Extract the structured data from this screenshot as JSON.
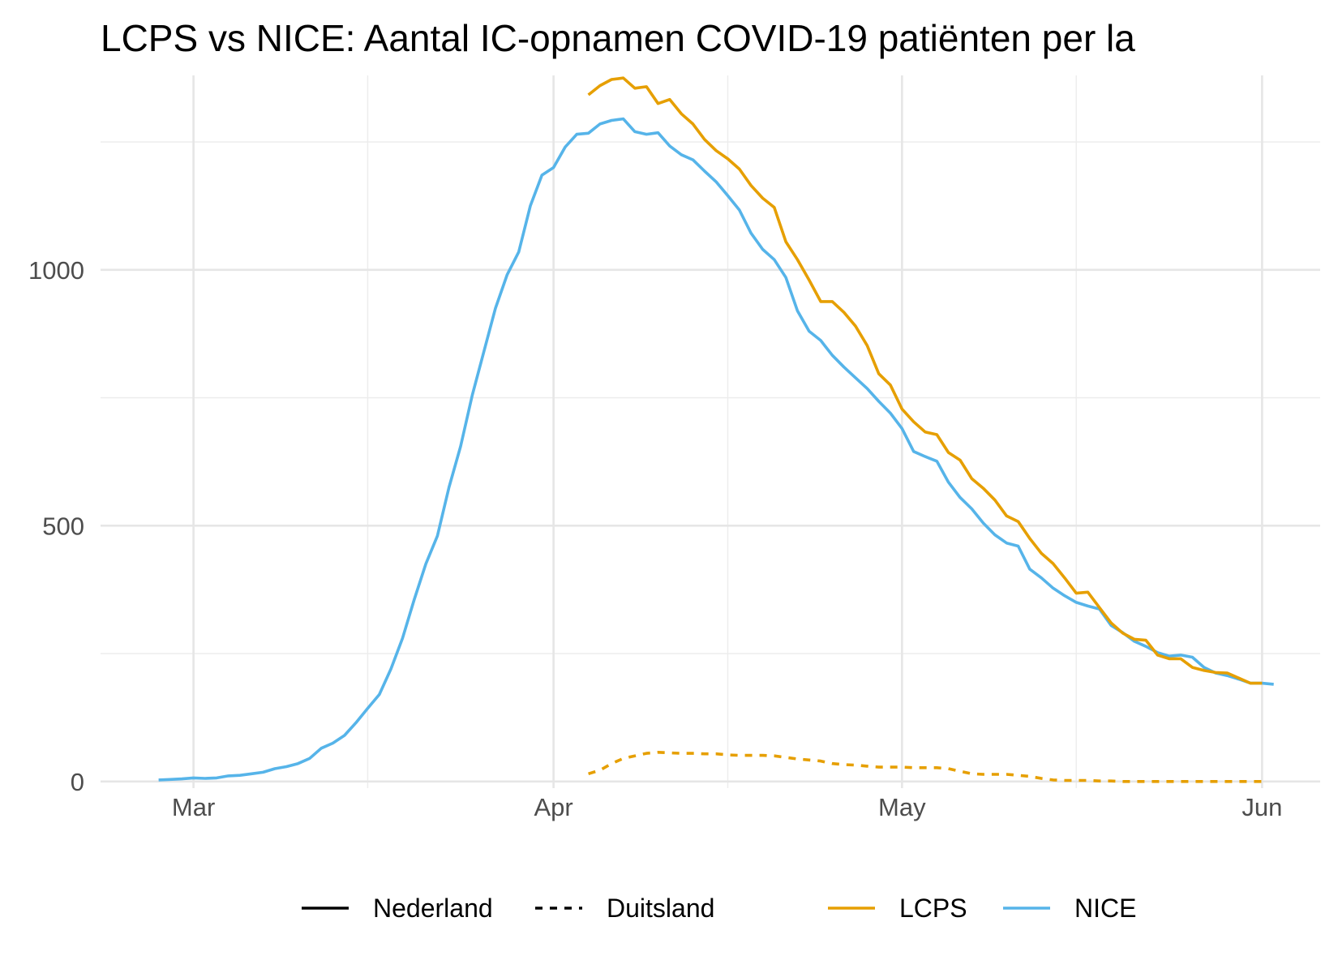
{
  "chart_data": {
    "type": "line",
    "title": "LCPS vs NICE: Aantal IC-opnamen COVID-19 patiënten per la",
    "xlabel": "",
    "ylabel": "",
    "x_axis": {
      "type": "date",
      "range": [
        "2020-02-22",
        "2020-06-06"
      ],
      "ticks": [
        {
          "date": "2020-03-01",
          "label": "Mar"
        },
        {
          "date": "2020-04-01",
          "label": "Apr"
        },
        {
          "date": "2020-05-01",
          "label": "May"
        },
        {
          "date": "2020-06-01",
          "label": "Jun"
        }
      ],
      "minor_ticks": [
        "2020-03-16",
        "2020-04-16",
        "2020-05-16"
      ]
    },
    "y_axis": {
      "range": [
        -13,
        1380
      ],
      "ticks": [
        {
          "value": 0,
          "label": "0"
        },
        {
          "value": 500,
          "label": "500"
        },
        {
          "value": 1000,
          "label": "1000"
        }
      ],
      "minor_ticks": [
        250,
        750,
        1250
      ]
    },
    "grid": true,
    "legend": {
      "position": "bottom",
      "linetype_items": [
        {
          "label": "Nederland",
          "dash": "solid"
        },
        {
          "label": "Duitsland",
          "dash": "dashed"
        }
      ],
      "color_items": [
        {
          "label": "LCPS",
          "color": "#E69F00"
        },
        {
          "label": "NICE",
          "color": "#56B4E9"
        }
      ]
    },
    "series": [
      {
        "source": "NICE",
        "country": "Nederland",
        "color": "#56B4E9",
        "dash": "solid",
        "points": [
          [
            "2020-02-27",
            3
          ],
          [
            "2020-02-28",
            4
          ],
          [
            "2020-02-29",
            5
          ],
          [
            "2020-03-01",
            7
          ],
          [
            "2020-03-02",
            6
          ],
          [
            "2020-03-03",
            7
          ],
          [
            "2020-03-04",
            11
          ],
          [
            "2020-03-05",
            12
          ],
          [
            "2020-03-06",
            15
          ],
          [
            "2020-03-07",
            18
          ],
          [
            "2020-03-08",
            25
          ],
          [
            "2020-03-09",
            29
          ],
          [
            "2020-03-10",
            35
          ],
          [
            "2020-03-11",
            45
          ],
          [
            "2020-03-12",
            65
          ],
          [
            "2020-03-13",
            75
          ],
          [
            "2020-03-14",
            90
          ],
          [
            "2020-03-15",
            115
          ],
          [
            "2020-03-16",
            143
          ],
          [
            "2020-03-17",
            170
          ],
          [
            "2020-03-18",
            220
          ],
          [
            "2020-03-19",
            280
          ],
          [
            "2020-03-20",
            355
          ],
          [
            "2020-03-21",
            425
          ],
          [
            "2020-03-22",
            480
          ],
          [
            "2020-03-23",
            575
          ],
          [
            "2020-03-24",
            655
          ],
          [
            "2020-03-25",
            755
          ],
          [
            "2020-03-26",
            840
          ],
          [
            "2020-03-27",
            925
          ],
          [
            "2020-03-28",
            990
          ],
          [
            "2020-03-29",
            1035
          ],
          [
            "2020-03-30",
            1125
          ],
          [
            "2020-03-31",
            1185
          ],
          [
            "2020-04-01",
            1200
          ],
          [
            "2020-04-02",
            1240
          ],
          [
            "2020-04-03",
            1265
          ],
          [
            "2020-04-04",
            1267
          ],
          [
            "2020-04-05",
            1285
          ],
          [
            "2020-04-06",
            1292
          ],
          [
            "2020-04-07",
            1295
          ],
          [
            "2020-04-08",
            1270
          ],
          [
            "2020-04-09",
            1265
          ],
          [
            "2020-04-10",
            1268
          ],
          [
            "2020-04-11",
            1242
          ],
          [
            "2020-04-12",
            1225
          ],
          [
            "2020-04-13",
            1215
          ],
          [
            "2020-04-14",
            1193
          ],
          [
            "2020-04-15",
            1172
          ],
          [
            "2020-04-16",
            1145
          ],
          [
            "2020-04-17",
            1117
          ],
          [
            "2020-04-18",
            1072
          ],
          [
            "2020-04-19",
            1040
          ],
          [
            "2020-04-20",
            1020
          ],
          [
            "2020-04-21",
            985
          ],
          [
            "2020-04-22",
            920
          ],
          [
            "2020-04-23",
            880
          ],
          [
            "2020-04-24",
            862
          ],
          [
            "2020-04-25",
            833
          ],
          [
            "2020-04-26",
            810
          ],
          [
            "2020-04-27",
            789
          ],
          [
            "2020-04-28",
            768
          ],
          [
            "2020-04-29",
            743
          ],
          [
            "2020-04-30",
            720
          ],
          [
            "2020-05-01",
            690
          ],
          [
            "2020-05-02",
            645
          ],
          [
            "2020-05-03",
            635
          ],
          [
            "2020-05-04",
            626
          ],
          [
            "2020-05-05",
            585
          ],
          [
            "2020-05-06",
            555
          ],
          [
            "2020-05-07",
            533
          ],
          [
            "2020-05-08",
            505
          ],
          [
            "2020-05-09",
            482
          ],
          [
            "2020-05-10",
            466
          ],
          [
            "2020-05-11",
            460
          ],
          [
            "2020-05-12",
            415
          ],
          [
            "2020-05-13",
            398
          ],
          [
            "2020-05-14",
            378
          ],
          [
            "2020-05-15",
            363
          ],
          [
            "2020-05-16",
            350
          ],
          [
            "2020-05-17",
            343
          ],
          [
            "2020-05-18",
            337
          ],
          [
            "2020-05-19",
            305
          ],
          [
            "2020-05-20",
            291
          ],
          [
            "2020-05-21",
            274
          ],
          [
            "2020-05-22",
            264
          ],
          [
            "2020-05-23",
            252
          ],
          [
            "2020-05-24",
            245
          ],
          [
            "2020-05-25",
            247
          ],
          [
            "2020-05-26",
            243
          ],
          [
            "2020-05-27",
            223
          ],
          [
            "2020-05-28",
            212
          ],
          [
            "2020-05-29",
            207
          ],
          [
            "2020-05-30",
            200
          ],
          [
            "2020-05-31",
            192
          ],
          [
            "2020-06-01",
            192
          ],
          [
            "2020-06-02",
            190
          ]
        ]
      },
      {
        "source": "LCPS",
        "country": "Nederland",
        "color": "#E69F00",
        "dash": "solid",
        "points": [
          [
            "2020-04-04",
            1342
          ],
          [
            "2020-04-05",
            1360
          ],
          [
            "2020-04-06",
            1372
          ],
          [
            "2020-04-07",
            1375
          ],
          [
            "2020-04-08",
            1355
          ],
          [
            "2020-04-09",
            1358
          ],
          [
            "2020-04-10",
            1325
          ],
          [
            "2020-04-11",
            1333
          ],
          [
            "2020-04-12",
            1305
          ],
          [
            "2020-04-13",
            1285
          ],
          [
            "2020-04-14",
            1255
          ],
          [
            "2020-04-15",
            1233
          ],
          [
            "2020-04-16",
            1217
          ],
          [
            "2020-04-17",
            1197
          ],
          [
            "2020-04-18",
            1165
          ],
          [
            "2020-04-19",
            1140
          ],
          [
            "2020-04-20",
            1122
          ],
          [
            "2020-04-21",
            1055
          ],
          [
            "2020-04-22",
            1020
          ],
          [
            "2020-04-23",
            980
          ],
          [
            "2020-04-24",
            938
          ],
          [
            "2020-04-25",
            938
          ],
          [
            "2020-04-26",
            917
          ],
          [
            "2020-04-27",
            890
          ],
          [
            "2020-04-28",
            852
          ],
          [
            "2020-04-29",
            797
          ],
          [
            "2020-04-30",
            775
          ],
          [
            "2020-05-01",
            728
          ],
          [
            "2020-05-02",
            703
          ],
          [
            "2020-05-03",
            683
          ],
          [
            "2020-05-04",
            678
          ],
          [
            "2020-05-05",
            643
          ],
          [
            "2020-05-06",
            628
          ],
          [
            "2020-05-07",
            592
          ],
          [
            "2020-05-08",
            573
          ],
          [
            "2020-05-09",
            550
          ],
          [
            "2020-05-10",
            519
          ],
          [
            "2020-05-11",
            508
          ],
          [
            "2020-05-12",
            475
          ],
          [
            "2020-05-13",
            446
          ],
          [
            "2020-05-14",
            426
          ],
          [
            "2020-05-15",
            398
          ],
          [
            "2020-05-16",
            368
          ],
          [
            "2020-05-17",
            370
          ],
          [
            "2020-05-18",
            340
          ],
          [
            "2020-05-19",
            310
          ],
          [
            "2020-05-20",
            290
          ],
          [
            "2020-05-21",
            278
          ],
          [
            "2020-05-22",
            276
          ],
          [
            "2020-05-23",
            247
          ],
          [
            "2020-05-24",
            240
          ],
          [
            "2020-05-25",
            240
          ],
          [
            "2020-05-26",
            223
          ],
          [
            "2020-05-27",
            217
          ],
          [
            "2020-05-28",
            213
          ],
          [
            "2020-05-29",
            212
          ],
          [
            "2020-05-30",
            202
          ],
          [
            "2020-05-31",
            192
          ],
          [
            "2020-06-01",
            192
          ]
        ]
      },
      {
        "source": "LCPS",
        "country": "Duitsland",
        "color": "#E69F00",
        "dash": "dashed",
        "points": [
          [
            "2020-04-04",
            15
          ],
          [
            "2020-04-05",
            22
          ],
          [
            "2020-04-06",
            35
          ],
          [
            "2020-04-07",
            45
          ],
          [
            "2020-04-08",
            50
          ],
          [
            "2020-04-09",
            55
          ],
          [
            "2020-04-10",
            57
          ],
          [
            "2020-04-11",
            56
          ],
          [
            "2020-04-12",
            55
          ],
          [
            "2020-04-13",
            55
          ],
          [
            "2020-04-14",
            54
          ],
          [
            "2020-04-15",
            54
          ],
          [
            "2020-04-16",
            52
          ],
          [
            "2020-04-17",
            51
          ],
          [
            "2020-04-18",
            51
          ],
          [
            "2020-04-19",
            51
          ],
          [
            "2020-04-20",
            50
          ],
          [
            "2020-04-21",
            47
          ],
          [
            "2020-04-22",
            44
          ],
          [
            "2020-04-23",
            42
          ],
          [
            "2020-04-24",
            40
          ],
          [
            "2020-04-25",
            35
          ],
          [
            "2020-04-26",
            33
          ],
          [
            "2020-04-27",
            32
          ],
          [
            "2020-04-28",
            30
          ],
          [
            "2020-04-29",
            28
          ],
          [
            "2020-04-30",
            28
          ],
          [
            "2020-05-01",
            28
          ],
          [
            "2020-05-02",
            27
          ],
          [
            "2020-05-03",
            27
          ],
          [
            "2020-05-04",
            27
          ],
          [
            "2020-05-05",
            25
          ],
          [
            "2020-05-06",
            20
          ],
          [
            "2020-05-07",
            15
          ],
          [
            "2020-05-08",
            14
          ],
          [
            "2020-05-09",
            14
          ],
          [
            "2020-05-10",
            14
          ],
          [
            "2020-05-11",
            12
          ],
          [
            "2020-05-12",
            10
          ],
          [
            "2020-05-13",
            6
          ],
          [
            "2020-05-14",
            3
          ],
          [
            "2020-05-15",
            2
          ],
          [
            "2020-05-16",
            2
          ],
          [
            "2020-05-17",
            2
          ],
          [
            "2020-05-18",
            1
          ],
          [
            "2020-05-19",
            1
          ],
          [
            "2020-05-20",
            0
          ],
          [
            "2020-05-21",
            0
          ],
          [
            "2020-05-22",
            0
          ],
          [
            "2020-05-23",
            0
          ],
          [
            "2020-05-24",
            0
          ],
          [
            "2020-05-25",
            0
          ],
          [
            "2020-05-26",
            0
          ],
          [
            "2020-05-27",
            0
          ],
          [
            "2020-05-28",
            0
          ],
          [
            "2020-05-29",
            0
          ],
          [
            "2020-05-30",
            0
          ],
          [
            "2020-05-31",
            0
          ],
          [
            "2020-06-01",
            0
          ]
        ]
      }
    ]
  }
}
